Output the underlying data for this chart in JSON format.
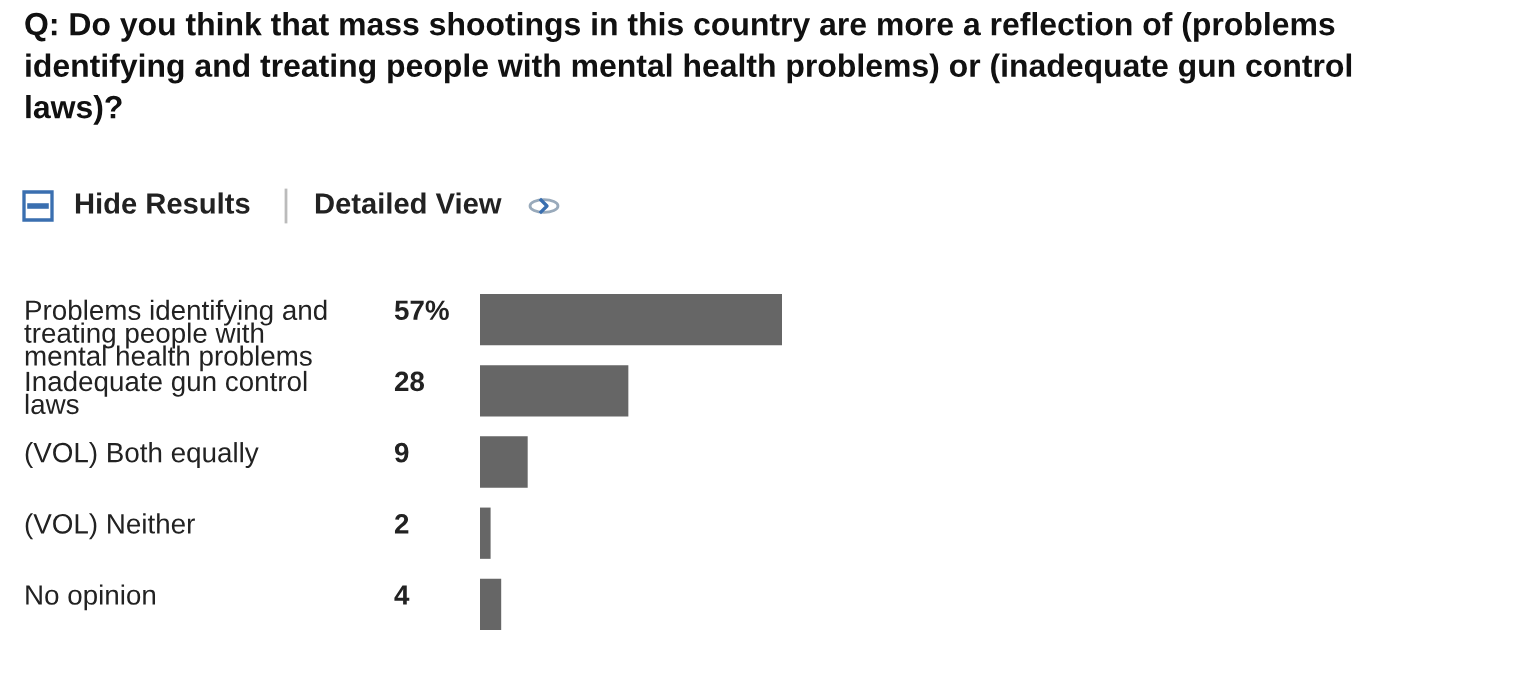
{
  "chart_data": {
    "type": "bar",
    "orientation": "horizontal",
    "title": "Q: Do you think that mass shootings in this country are more a reflection of (problems\nidentifying and treating people with mental health problems) or (inadequate gun control\nlaws)?",
    "annotations": [
      "Hide Results",
      "Detailed View"
    ],
    "categories": [
      "Problems identifying and\ntreating people with\nmental health problems",
      "Inadequate gun control\nlaws",
      "(VOL) Both equally",
      "(VOL) Neither",
      "No opinion"
    ],
    "values": [
      57,
      28,
      9,
      2,
      4
    ],
    "value_labels": [
      "57%",
      "28",
      "9",
      "2",
      "4"
    ],
    "color": "#666666",
    "legend": false
  }
}
